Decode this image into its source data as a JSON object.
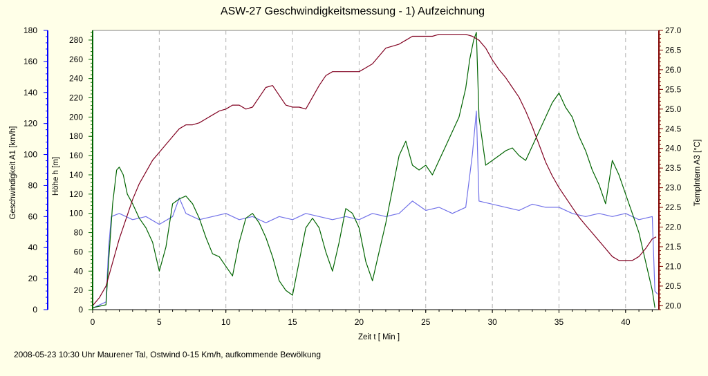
{
  "chart_data": {
    "type": "line",
    "title": "ASW-27 Geschwindigkeitsmessung - 1) Aufzeichnung",
    "xlabel": "Zeit  t   [ Min ]",
    "xlim": [
      0,
      42.5
    ],
    "xticks": [
      0,
      5,
      10,
      15,
      20,
      25,
      30,
      35,
      40
    ],
    "grid": "vertical dashed at x ticks",
    "axes": {
      "speed": {
        "label": "Geschwindigkeit   A1   [km/h]",
        "ylim": [
          0,
          180
        ],
        "ticks": [
          0,
          20,
          40,
          60,
          80,
          100,
          120,
          140,
          160,
          180
        ],
        "color": "#0000ff",
        "side": "left-outer"
      },
      "height": {
        "label": "Höhe   h   [m]",
        "ylim": [
          0,
          290
        ],
        "ticks": [
          0,
          20,
          40,
          60,
          80,
          100,
          120,
          140,
          160,
          180,
          200,
          220,
          240,
          260,
          280
        ],
        "color": "#006400",
        "side": "left-inner"
      },
      "temp": {
        "label": "TempIntern   A3   [°C]",
        "ylim": [
          19.9,
          27.0
        ],
        "ticks": [
          20.0,
          20.5,
          21.0,
          21.5,
          22.0,
          22.5,
          23.0,
          23.5,
          24.0,
          24.5,
          25.0,
          25.5,
          26.0,
          26.5,
          27.0
        ],
        "color": "#800000",
        "side": "right"
      }
    },
    "series": [
      {
        "axis": "speed",
        "color": "#7070e8",
        "x": [
          0,
          0.5,
          1.0,
          1.2,
          1.4,
          2.0,
          3.0,
          4.0,
          5.0,
          6.0,
          6.5,
          7.0,
          8.0,
          9.0,
          10.0,
          11.0,
          12.0,
          13.0,
          14.0,
          15.0,
          16.0,
          17.0,
          18.0,
          19.0,
          20.0,
          21.0,
          22.0,
          23.0,
          24.0,
          25.0,
          26.0,
          27.0,
          28.0,
          28.5,
          28.8,
          29.0,
          30.0,
          31.0,
          32.0,
          33.0,
          34.0,
          35.0,
          36.0,
          37.0,
          38.0,
          39.0,
          40.0,
          41.0,
          42.0,
          42.2,
          42.4
        ],
        "y": [
          1,
          3,
          5,
          40,
          60,
          62,
          58,
          60,
          55,
          60,
          72,
          62,
          58,
          60,
          62,
          58,
          60,
          56,
          60,
          58,
          62,
          60,
          58,
          60,
          58,
          62,
          60,
          62,
          70,
          64,
          66,
          62,
          66,
          100,
          128,
          70,
          68,
          66,
          64,
          68,
          66,
          66,
          62,
          60,
          62,
          60,
          62,
          58,
          60,
          12,
          10
        ]
      },
      {
        "axis": "height",
        "color": "#006400",
        "x": [
          0,
          1.0,
          1.2,
          1.5,
          1.8,
          2.0,
          2.3,
          2.6,
          3.0,
          3.5,
          4.0,
          4.5,
          5.0,
          5.5,
          6.0,
          6.5,
          7.0,
          7.5,
          8.0,
          8.5,
          9.0,
          9.5,
          10.0,
          10.5,
          11.0,
          11.5,
          12.0,
          12.5,
          13.0,
          13.5,
          14.0,
          14.5,
          15.0,
          15.5,
          16.0,
          16.5,
          17.0,
          17.5,
          18.0,
          18.5,
          19.0,
          19.5,
          20.0,
          20.5,
          21.0,
          21.5,
          22.0,
          22.5,
          23.0,
          23.5,
          24.0,
          24.5,
          25.0,
          25.5,
          26.0,
          26.5,
          27.0,
          27.5,
          28.0,
          28.3,
          28.6,
          28.8,
          29.0,
          29.5,
          30.0,
          30.5,
          31.0,
          31.5,
          32.0,
          32.5,
          33.0,
          33.5,
          34.0,
          34.5,
          35.0,
          35.5,
          36.0,
          36.5,
          37.0,
          37.5,
          38.0,
          38.5,
          39.0,
          39.5,
          40.0,
          40.5,
          41.0,
          41.5,
          42.0,
          42.2
        ],
        "y": [
          2,
          5,
          50,
          110,
          145,
          148,
          140,
          120,
          110,
          95,
          85,
          70,
          40,
          65,
          110,
          115,
          118,
          110,
          95,
          75,
          58,
          55,
          45,
          35,
          70,
          95,
          100,
          90,
          75,
          55,
          30,
          20,
          15,
          50,
          85,
          95,
          85,
          60,
          40,
          70,
          105,
          100,
          85,
          50,
          30,
          60,
          90,
          125,
          160,
          175,
          150,
          145,
          150,
          140,
          155,
          170,
          185,
          200,
          230,
          260,
          280,
          288,
          200,
          150,
          155,
          160,
          165,
          168,
          160,
          155,
          170,
          185,
          200,
          215,
          225,
          210,
          200,
          180,
          165,
          145,
          130,
          110,
          155,
          140,
          120,
          100,
          80,
          50,
          20,
          2
        ]
      },
      {
        "axis": "temp",
        "color": "#800020",
        "x": [
          0,
          0.5,
          1.0,
          1.5,
          2.0,
          2.5,
          3.0,
          3.5,
          4.0,
          4.5,
          5.0,
          5.5,
          6.0,
          6.5,
          7.0,
          7.5,
          8.0,
          8.5,
          9.0,
          9.5,
          10.0,
          10.5,
          11.0,
          11.5,
          12.0,
          12.5,
          13.0,
          13.5,
          14.0,
          14.5,
          15.0,
          15.5,
          16.0,
          16.5,
          17.0,
          17.5,
          18.0,
          18.5,
          19.0,
          19.5,
          20.0,
          20.5,
          21.0,
          21.5,
          22.0,
          22.5,
          23.0,
          23.5,
          24.0,
          24.5,
          25.0,
          25.5,
          26.0,
          26.5,
          27.0,
          27.5,
          28.0,
          28.5,
          29.0,
          29.5,
          30.0,
          30.5,
          31.0,
          31.5,
          32.0,
          32.5,
          33.0,
          33.5,
          34.0,
          34.5,
          35.0,
          35.5,
          36.0,
          36.5,
          37.0,
          37.5,
          38.0,
          38.5,
          39.0,
          39.5,
          40.0,
          40.5,
          41.0,
          41.5,
          42.0,
          42.3
        ],
        "y": [
          20.0,
          20.2,
          20.5,
          21.1,
          21.7,
          22.2,
          22.7,
          23.1,
          23.4,
          23.7,
          23.9,
          24.1,
          24.3,
          24.5,
          24.6,
          24.6,
          24.65,
          24.75,
          24.85,
          24.95,
          25.0,
          25.1,
          25.1,
          25.0,
          25.05,
          25.3,
          25.55,
          25.6,
          25.35,
          25.1,
          25.05,
          25.05,
          25.0,
          25.3,
          25.6,
          25.85,
          25.95,
          25.95,
          25.95,
          25.95,
          25.95,
          26.05,
          26.15,
          26.35,
          26.55,
          26.6,
          26.65,
          26.75,
          26.85,
          26.85,
          26.85,
          26.85,
          26.9,
          26.9,
          26.9,
          26.9,
          26.9,
          26.85,
          26.75,
          26.55,
          26.25,
          26.0,
          25.8,
          25.55,
          25.3,
          24.95,
          24.55,
          24.1,
          23.65,
          23.3,
          23.0,
          22.75,
          22.5,
          22.25,
          22.05,
          21.85,
          21.65,
          21.45,
          21.25,
          21.15,
          21.15,
          21.15,
          21.25,
          21.45,
          21.7,
          21.75
        ]
      }
    ]
  },
  "footer": "2008-05-23 10:30 Uhr Maurener Tal, Ostwind 0-15 Km/h, aufkommende Bewölkung"
}
